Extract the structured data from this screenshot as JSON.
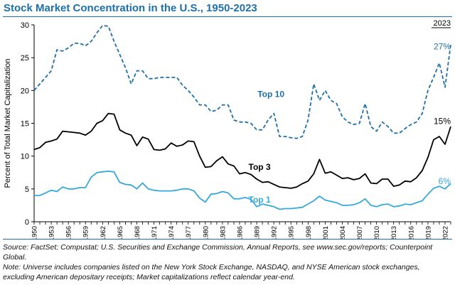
{
  "chart_data": {
    "type": "line",
    "title": "Stock Market Concentration in the U.S., 1950-2023",
    "xlabel": "",
    "ylabel": "Percent of Total Market Capitalization",
    "xlim": [
      1950,
      2023
    ],
    "ylim": [
      0,
      30
    ],
    "yticks": [
      0,
      5,
      10,
      15,
      20,
      25,
      30
    ],
    "xticks": [
      1950,
      1953,
      1956,
      1959,
      1962,
      1965,
      1968,
      1971,
      1974,
      1977,
      1980,
      1983,
      1986,
      1989,
      1992,
      1995,
      1998,
      2001,
      2004,
      2007,
      2010,
      2013,
      2016,
      2019,
      2022
    ],
    "year_label": "2023",
    "x": [
      1950,
      1951,
      1952,
      1953,
      1954,
      1955,
      1956,
      1957,
      1958,
      1959,
      1960,
      1961,
      1962,
      1963,
      1964,
      1965,
      1966,
      1967,
      1968,
      1969,
      1970,
      1971,
      1972,
      1973,
      1974,
      1975,
      1976,
      1977,
      1978,
      1979,
      1980,
      1981,
      1982,
      1983,
      1984,
      1985,
      1986,
      1987,
      1988,
      1989,
      1990,
      1991,
      1992,
      1993,
      1994,
      1995,
      1996,
      1997,
      1998,
      1999,
      2000,
      2001,
      2002,
      2003,
      2004,
      2005,
      2006,
      2007,
      2008,
      2009,
      2010,
      2011,
      2012,
      2013,
      2014,
      2015,
      2016,
      2017,
      2018,
      2019,
      2020,
      2021,
      2022,
      2023
    ],
    "series": [
      {
        "name": "Top 10",
        "style": "dashed",
        "color": "#1f6fa8",
        "label": "Top 10",
        "end_label": "27%",
        "values": [
          20,
          21,
          22,
          23,
          26.2,
          26,
          26.5,
          27.2,
          27.2,
          26.8,
          27.5,
          28.8,
          29.9,
          29.8,
          27.5,
          25.5,
          23.5,
          21,
          23,
          23,
          21.8,
          21.8,
          22,
          22,
          22,
          22,
          20.8,
          20,
          19,
          17.8,
          17.8,
          16.8,
          17,
          17.8,
          17.8,
          15.5,
          15.2,
          15.2,
          15,
          14,
          14,
          15.5,
          16.5,
          13,
          13,
          12.8,
          12.7,
          13,
          15.5,
          21,
          18.5,
          20,
          18.5,
          18,
          16,
          15.2,
          14.8,
          15,
          18,
          14.5,
          13.8,
          15.2,
          14.5,
          13.5,
          13.5,
          14.2,
          14.8,
          15.2,
          16.5,
          20,
          22,
          24.2,
          20.5,
          27
        ]
      },
      {
        "name": "Top 3",
        "style": "solid",
        "color": "#000000",
        "label": "Top 3",
        "end_label": "15%",
        "values": [
          11,
          11.3,
          12.1,
          12.3,
          12.6,
          13.8,
          13.7,
          13.6,
          13.5,
          13.2,
          13.8,
          15,
          15.4,
          16.5,
          16.4,
          14,
          13.5,
          13.2,
          11.6,
          12.9,
          12.6,
          11,
          10.9,
          11.1,
          12,
          11.5,
          11.7,
          12.3,
          12.2,
          10,
          8.3,
          8.4,
          9.3,
          9.9,
          8.8,
          8.5,
          7.3,
          7.5,
          7.2,
          6.5,
          6,
          6.1,
          5.7,
          5.3,
          5.2,
          5.1,
          5.3,
          5.8,
          6.2,
          7.3,
          9.5,
          7.4,
          7.6,
          7.1,
          6.6,
          6.7,
          6.4,
          6.6,
          7.3,
          5.9,
          5.8,
          6.5,
          6.5,
          5.4,
          5.6,
          6.2,
          6.1,
          6.7,
          7.8,
          9.8,
          12.5,
          13,
          11.8,
          14.5
        ]
      },
      {
        "name": "Top 1",
        "style": "solid",
        "color": "#35a9dc",
        "label": "Top 1",
        "end_label": "6%",
        "values": [
          4,
          4,
          4.4,
          4.8,
          4.6,
          5.3,
          5,
          5,
          5.2,
          5.2,
          6.8,
          7.5,
          7.6,
          7.7,
          7.6,
          6,
          5.7,
          5.6,
          5,
          5.9,
          5,
          4.8,
          4.7,
          4.7,
          4.7,
          4.8,
          5,
          5,
          4.7,
          3.6,
          3,
          4.2,
          4.3,
          4.6,
          4.4,
          3.5,
          3.5,
          3.7,
          3.4,
          2.3,
          2.7,
          2.5,
          2.3,
          1.9,
          2,
          2,
          2.1,
          2.2,
          2.7,
          3.2,
          3.9,
          3.3,
          3.1,
          2.9,
          2.5,
          2.5,
          2.6,
          2.9,
          3.5,
          2.5,
          2.3,
          2.6,
          2.7,
          2.3,
          2.4,
          2.7,
          2.6,
          2.9,
          3.2,
          4.2,
          5.1,
          5.4,
          5,
          5.8
        ]
      }
    ]
  },
  "notes": {
    "source": "Source: FactSet; Compustat; U.S. Securities and Exchange Commission, Annual Reports, see www.sec.gov/reports; Counterpoint Global.",
    "note": "Note: Universe includes companies listed on the New York Stock Exchange, NASDAQ, and NYSE American stock exchanges, excluding American depositary receipts; Market capitalizations reflect calendar year-end."
  }
}
